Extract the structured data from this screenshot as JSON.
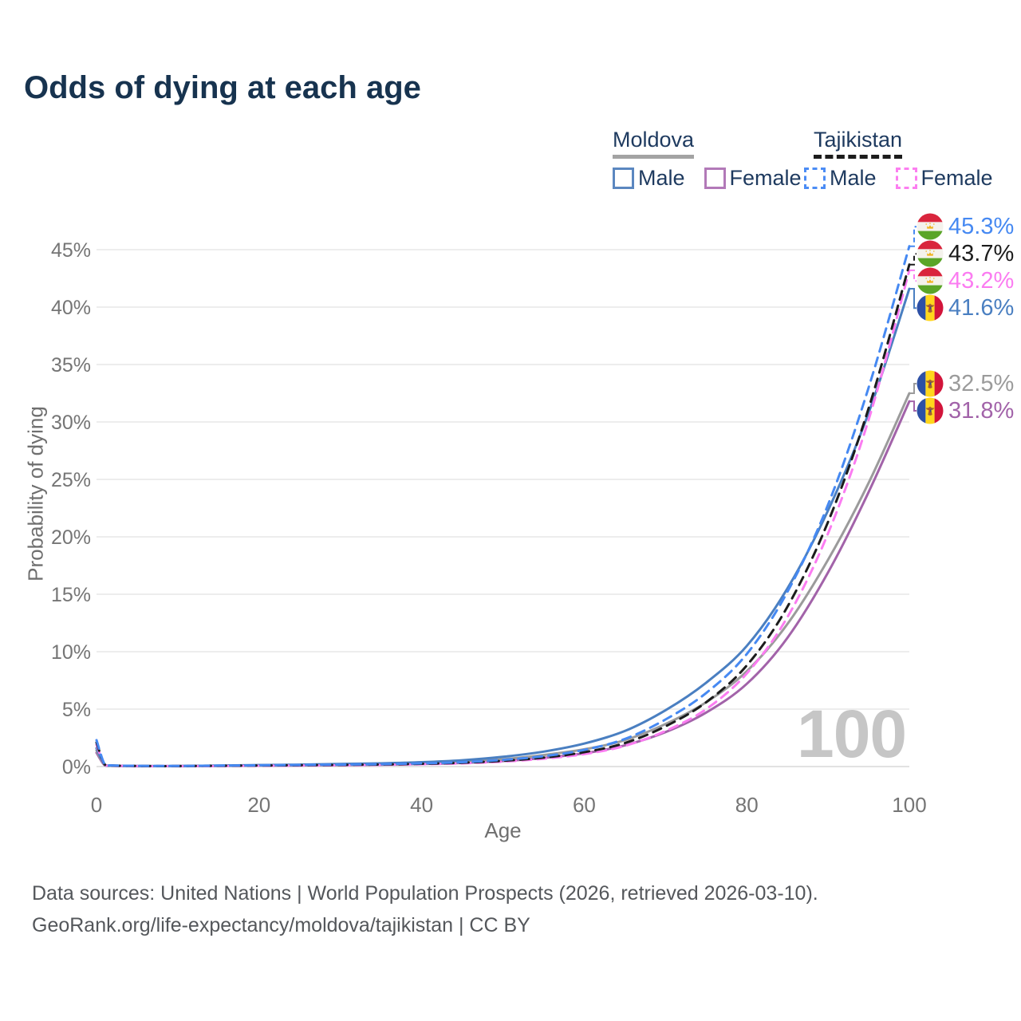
{
  "title": "Odds of dying at each age",
  "legend": {
    "groups": [
      {
        "title": "Moldova",
        "line_style": "solid",
        "underline_color": "#a3a3a3",
        "items": [
          {
            "label": "Male",
            "color": "#5b87c0"
          },
          {
            "label": "Female",
            "color": "#b279b8"
          }
        ]
      },
      {
        "title": "Tajikistan",
        "line_style": "dashed",
        "underline_color": "#1c1c1c",
        "items": [
          {
            "label": "Male",
            "color": "#4b8cf5"
          },
          {
            "label": "Female",
            "color": "#fc7ef0"
          }
        ]
      }
    ]
  },
  "watermark": "100",
  "footer": {
    "line1": "Data sources: United Nations | World Population Prospects (2026, retrieved 2026-03-10).",
    "line2": "GeoRank.org/life-expectancy/moldova/tajikistan | CC BY"
  },
  "chart_data": {
    "type": "line",
    "title": "Odds of dying at each age",
    "xlabel": "Age",
    "ylabel": "Probability of dying",
    "xlim": [
      0,
      100
    ],
    "ylim": [
      0,
      47
    ],
    "xticks": [
      0,
      20,
      40,
      60,
      80,
      100
    ],
    "yticks": [
      0,
      5,
      10,
      15,
      20,
      25,
      30,
      35,
      40,
      45
    ],
    "ytick_suffix": "%",
    "grid": true,
    "legend_position": "top-right",
    "x": [
      0,
      1,
      2,
      5,
      10,
      15,
      20,
      25,
      30,
      35,
      40,
      45,
      50,
      55,
      60,
      65,
      70,
      75,
      80,
      85,
      90,
      95,
      100
    ],
    "series": [
      {
        "id": "tajikistan-male",
        "name": "Tajikistan Male",
        "country": "Tajikistan",
        "sex": "male",
        "style": "dashed",
        "color": "#4689f2",
        "flag": "tajikistan",
        "end_label": "45.3%",
        "values": [
          2.3,
          0.2,
          0.1,
          0.06,
          0.05,
          0.08,
          0.11,
          0.14,
          0.17,
          0.21,
          0.28,
          0.38,
          0.58,
          0.9,
          1.45,
          2.4,
          4.1,
          6.4,
          9.8,
          15.2,
          22.8,
          33.0,
          45.3
        ]
      },
      {
        "id": "tajikistan-both",
        "name": "Tajikistan",
        "country": "Tajikistan",
        "sex": "both",
        "style": "dashed",
        "color": "#1c1c1c",
        "flag": "tajikistan",
        "end_label": "43.7%",
        "values": [
          2.1,
          0.18,
          0.09,
          0.05,
          0.04,
          0.07,
          0.09,
          0.12,
          0.14,
          0.18,
          0.24,
          0.33,
          0.5,
          0.78,
          1.25,
          2.05,
          3.5,
          5.6,
          8.8,
          13.9,
          21.3,
          31.2,
          43.7
        ]
      },
      {
        "id": "tajikistan-female",
        "name": "Tajikistan Female",
        "country": "Tajikistan",
        "sex": "female",
        "style": "dashed",
        "color": "#fb7cf1",
        "flag": "tajikistan",
        "end_label": "43.2%",
        "values": [
          1.9,
          0.16,
          0.08,
          0.04,
          0.04,
          0.05,
          0.07,
          0.09,
          0.11,
          0.15,
          0.2,
          0.28,
          0.43,
          0.68,
          1.08,
          1.8,
          3.1,
          5.0,
          8.1,
          13.0,
          20.3,
          30.2,
          43.2
        ]
      },
      {
        "id": "moldova-male",
        "name": "Moldova Male",
        "country": "Moldova",
        "sex": "male",
        "style": "solid",
        "color": "#4a7fc1",
        "flag": "moldova",
        "end_label": "41.6%",
        "values": [
          1.6,
          0.15,
          0.08,
          0.05,
          0.05,
          0.09,
          0.13,
          0.17,
          0.22,
          0.28,
          0.38,
          0.55,
          0.85,
          1.3,
          2.0,
          3.1,
          4.9,
          7.3,
          10.5,
          15.5,
          22.3,
          30.8,
          41.6
        ]
      },
      {
        "id": "moldova-both",
        "name": "Moldova",
        "country": "Moldova",
        "sex": "both",
        "style": "solid",
        "color": "#9b9b9b",
        "flag": "moldova",
        "end_label": "32.5%",
        "values": [
          1.4,
          0.13,
          0.07,
          0.04,
          0.04,
          0.07,
          0.11,
          0.14,
          0.17,
          0.22,
          0.3,
          0.42,
          0.64,
          1.0,
          1.5,
          2.3,
          3.7,
          5.6,
          8.3,
          12.4,
          18.0,
          24.7,
          32.5
        ]
      },
      {
        "id": "moldova-female",
        "name": "Moldova Female",
        "country": "Moldova",
        "sex": "female",
        "style": "solid",
        "color": "#a263a9",
        "flag": "moldova",
        "end_label": "31.8%",
        "values": [
          1.2,
          0.11,
          0.06,
          0.03,
          0.03,
          0.05,
          0.08,
          0.1,
          0.13,
          0.16,
          0.22,
          0.31,
          0.48,
          0.75,
          1.15,
          1.85,
          3.0,
          4.7,
          7.2,
          11.2,
          16.9,
          23.9,
          31.8
        ]
      }
    ]
  }
}
